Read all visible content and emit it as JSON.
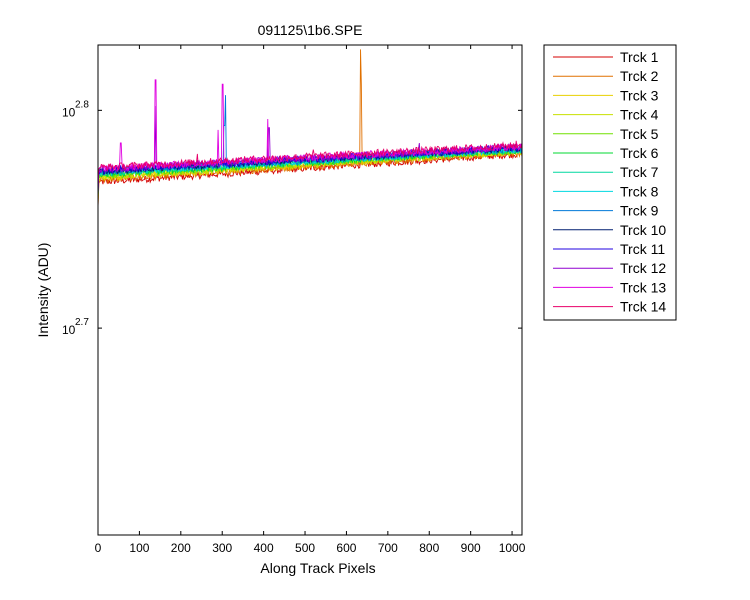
{
  "chart_data": {
    "type": "line",
    "title": "091125\\1b6.SPE",
    "xlabel": "Along Track Pixels",
    "ylabel": "Intensity (ADU)",
    "xlim": [
      0,
      1024
    ],
    "ylim_log10": [
      2.605,
      2.83
    ],
    "yscale": "log",
    "grid": false,
    "legend_position": "outside-top-right",
    "x_ticks": [
      0,
      100,
      200,
      300,
      400,
      500,
      600,
      700,
      800,
      900,
      1000
    ],
    "x_tick_labels": [
      "0",
      "100",
      "200",
      "300",
      "400",
      "500",
      "600",
      "700",
      "800",
      "900",
      "1000"
    ],
    "y_ticks": [
      {
        "log10": 2.8,
        "base": "10",
        "exponent": "2.8"
      },
      {
        "log10": 2.7,
        "base": "10",
        "exponent": "2.7"
      }
    ],
    "series": [
      {
        "name": "Trck 1",
        "color": "#d40000",
        "log10_start": 2.767,
        "log10_end": 2.78,
        "spikes": []
      },
      {
        "name": "Trck 2",
        "color": "#e07000",
        "log10_start": 2.768,
        "log10_end": 2.7805,
        "spikes": [
          [
            634,
            2.828
          ],
          [
            636,
            2.812
          ]
        ]
      },
      {
        "name": "Trck 3",
        "color": "#e8d000",
        "log10_start": 2.769,
        "log10_end": 2.781,
        "spikes": []
      },
      {
        "name": "Trck 4",
        "color": "#c8e000",
        "log10_start": 2.7695,
        "log10_end": 2.7812,
        "spikes": []
      },
      {
        "name": "Trck 5",
        "color": "#70e000",
        "log10_start": 2.77,
        "log10_end": 2.7815,
        "spikes": []
      },
      {
        "name": "Trck 6",
        "color": "#00d830",
        "log10_start": 2.7705,
        "log10_end": 2.7818,
        "spikes": []
      },
      {
        "name": "Trck 7",
        "color": "#00d8a0",
        "log10_start": 2.771,
        "log10_end": 2.782,
        "spikes": []
      },
      {
        "name": "Trck 8",
        "color": "#00d8e0",
        "log10_start": 2.7715,
        "log10_end": 2.7822,
        "spikes": []
      },
      {
        "name": "Trck 9",
        "color": "#0078d8",
        "log10_start": 2.7718,
        "log10_end": 2.7825,
        "spikes": [
          [
            305,
            2.793
          ],
          [
            308,
            2.807
          ]
        ]
      },
      {
        "name": "Trck 10",
        "color": "#001e70",
        "log10_start": 2.772,
        "log10_end": 2.7828,
        "spikes": []
      },
      {
        "name": "Trck 11",
        "color": "#2000e0",
        "log10_start": 2.7725,
        "log10_end": 2.783,
        "spikes": []
      },
      {
        "name": "Trck 12",
        "color": "#9000d0",
        "log10_start": 2.7728,
        "log10_end": 2.7832,
        "spikes": [
          [
            138,
            2.802
          ],
          [
            413,
            2.792
          ],
          [
            776,
            2.785
          ]
        ]
      },
      {
        "name": "Trck 13",
        "color": "#e000e0",
        "log10_start": 2.7732,
        "log10_end": 2.7835,
        "spikes": [
          [
            55,
            2.785
          ],
          [
            139,
            2.814
          ],
          [
            290,
            2.791
          ],
          [
            301,
            2.812
          ],
          [
            410,
            2.796
          ]
        ]
      },
      {
        "name": "Trck 14",
        "color": "#e8006a",
        "log10_start": 2.7738,
        "log10_end": 2.784,
        "spikes": [
          [
            240,
            2.78
          ],
          [
            520,
            2.782
          ],
          [
            1010,
            2.786
          ]
        ]
      }
    ]
  }
}
